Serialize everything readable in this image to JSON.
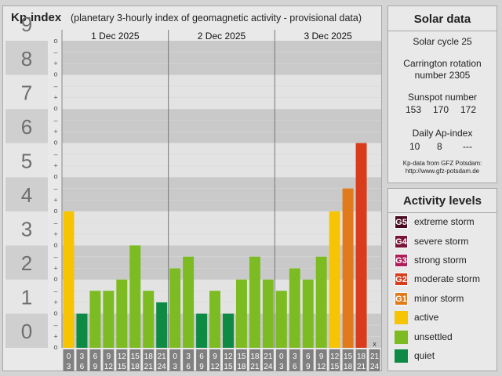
{
  "chart_data": {
    "type": "bar",
    "title": "Kp-index",
    "subtitle": "(planetary 3-hourly index of geomagnetic activity - provisional data)",
    "ylim": [
      0,
      9
    ],
    "y_ticks": [
      "0",
      "1",
      "2",
      "3",
      "4",
      "5",
      "6",
      "7",
      "8",
      "9"
    ],
    "fine_ticks": [
      "o",
      "+",
      "–"
    ],
    "days": [
      "1 Dec 2025",
      "2 Dec 2025",
      "3 Dec 2025"
    ],
    "interval_start": [
      "0",
      "3",
      "6",
      "9",
      "12",
      "15",
      "18",
      "21"
    ],
    "interval_end": [
      "3",
      "6",
      "9",
      "12",
      "15",
      "18",
      "21",
      "24"
    ],
    "values": [
      4.0,
      1.0,
      1.67,
      1.67,
      2.0,
      3.0,
      1.67,
      1.33,
      2.33,
      2.67,
      1.0,
      1.67,
      1.0,
      2.0,
      2.67,
      2.0,
      1.67,
      2.33,
      2.0,
      2.67,
      4.0,
      4.67,
      6.0
    ],
    "missing_marker": "x",
    "colors": {
      "quiet": "#0e8a45",
      "unsettled": "#7cbb21",
      "active": "#f7c403",
      "G1": "#e07a1a",
      "G2": "#d83c1c",
      "G3": "#b01e5a",
      "G4": "#7a1438",
      "G5": "#4a0a20"
    }
  },
  "solar": {
    "title": "Solar data",
    "cycle": "Solar cycle 25",
    "carrington_line1": "Carrington rotation",
    "carrington_line2": "number 2305",
    "sunspot_label": "Sunspot number",
    "sunspot_values": [
      "153",
      "170",
      "172"
    ],
    "ap_label": "Daily Ap-index",
    "ap_values": [
      "10",
      "8",
      "---"
    ],
    "source_line1": "Kp-data from GFZ Potsdam:",
    "source_line2": "http://www.gfz-potsdam.de"
  },
  "activity": {
    "title": "Activity levels",
    "levels": [
      {
        "badge": "G5",
        "label": "extreme storm",
        "color": "#4a0a20"
      },
      {
        "badge": "G4",
        "label": "severe storm",
        "color": "#7a1438"
      },
      {
        "badge": "G3",
        "label": "strong storm",
        "color": "#b01e5a"
      },
      {
        "badge": "G2",
        "label": "moderate storm",
        "color": "#d83c1c"
      },
      {
        "badge": "G1",
        "label": "minor storm",
        "color": "#e07a1a"
      },
      {
        "badge": "",
        "label": "active",
        "color": "#f7c403"
      },
      {
        "badge": "",
        "label": "unsettled",
        "color": "#7cbb21"
      },
      {
        "badge": "",
        "label": "quiet",
        "color": "#0e8a45"
      }
    ]
  }
}
